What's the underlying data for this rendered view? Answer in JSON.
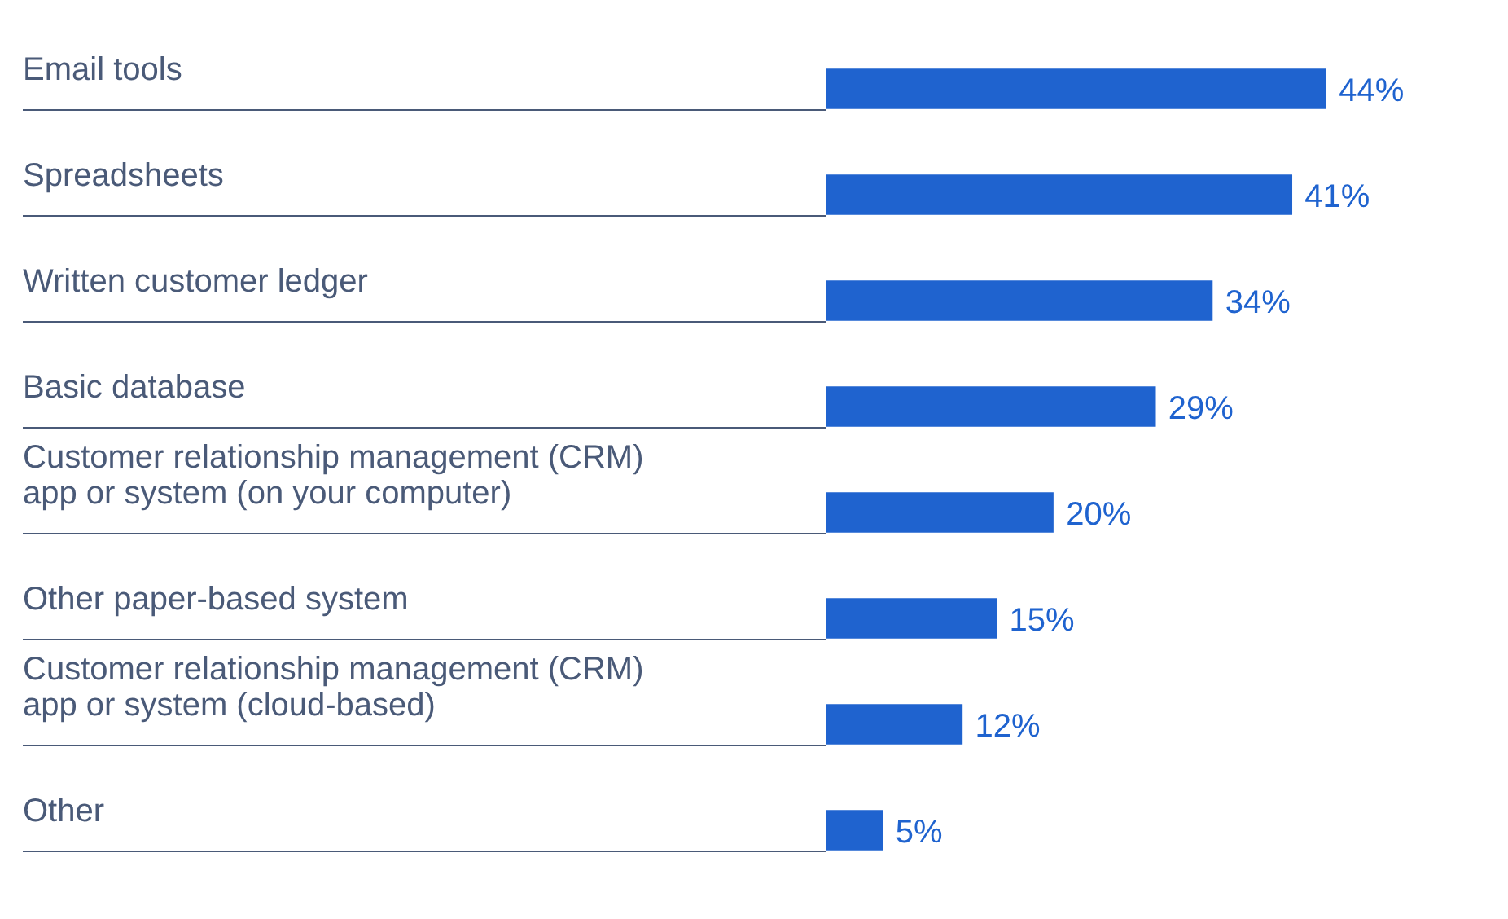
{
  "chart_data": {
    "type": "bar",
    "orientation": "horizontal",
    "categories": [
      "Email tools",
      "Spreadsheets",
      "Written customer ledger",
      "Basic database",
      "Customer relationship management (CRM) app or system (on your computer)",
      "Other paper-based system",
      "Customer relationship management (CRM) app or system (cloud-based)",
      "Other"
    ],
    "values": [
      44,
      41,
      34,
      29,
      20,
      15,
      12,
      5
    ],
    "color": "#1f63cf",
    "data_labels": true,
    "value_labels": [
      "44%",
      "41%",
      "34%",
      "29%",
      "20%",
      "15%",
      "12%",
      "5%"
    ],
    "grid": false,
    "legend": false
  }
}
